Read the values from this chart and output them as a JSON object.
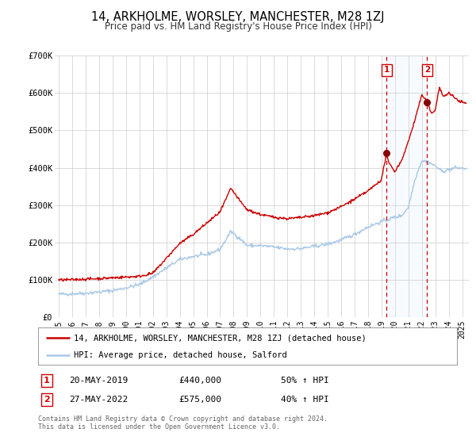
{
  "title": "14, ARKHOLME, WORSLEY, MANCHESTER, M28 1ZJ",
  "subtitle": "Price paid vs. HM Land Registry's House Price Index (HPI)",
  "ylim": [
    0,
    700000
  ],
  "xlim_start": 1994.7,
  "xlim_end": 2025.5,
  "yticks": [
    0,
    100000,
    200000,
    300000,
    400000,
    500000,
    600000,
    700000
  ],
  "ytick_labels": [
    "£0",
    "£100K",
    "£200K",
    "£300K",
    "£400K",
    "£500K",
    "£600K",
    "£700K"
  ],
  "xtick_years": [
    1995,
    1996,
    1997,
    1998,
    1999,
    2000,
    2001,
    2002,
    2003,
    2004,
    2005,
    2006,
    2007,
    2008,
    2009,
    2010,
    2011,
    2012,
    2013,
    2014,
    2015,
    2016,
    2017,
    2018,
    2019,
    2020,
    2021,
    2022,
    2023,
    2024,
    2025
  ],
  "hpi_color": "#a8c8e8",
  "price_color": "#cc0000",
  "sale1_x": 2019.38,
  "sale1_y": 440000,
  "sale2_x": 2022.4,
  "sale2_y": 575000,
  "vline_color": "#cc0000",
  "dot_color": "#880000",
  "shade_color": "#ddeeff",
  "legend_line1": "14, ARKHOLME, WORSLEY, MANCHESTER, M28 1ZJ (detached house)",
  "legend_line2": "HPI: Average price, detached house, Salford",
  "table_row1_num": "1",
  "table_row1_date": "20-MAY-2019",
  "table_row1_price": "£440,000",
  "table_row1_hpi": "50% ↑ HPI",
  "table_row2_num": "2",
  "table_row2_date": "27-MAY-2022",
  "table_row2_price": "£575,000",
  "table_row2_hpi": "40% ↑ HPI",
  "footnote1": "Contains HM Land Registry data © Crown copyright and database right 2024.",
  "footnote2": "This data is licensed under the Open Government Licence v3.0.",
  "background_color": "#ffffff",
  "grid_color": "#cccccc"
}
